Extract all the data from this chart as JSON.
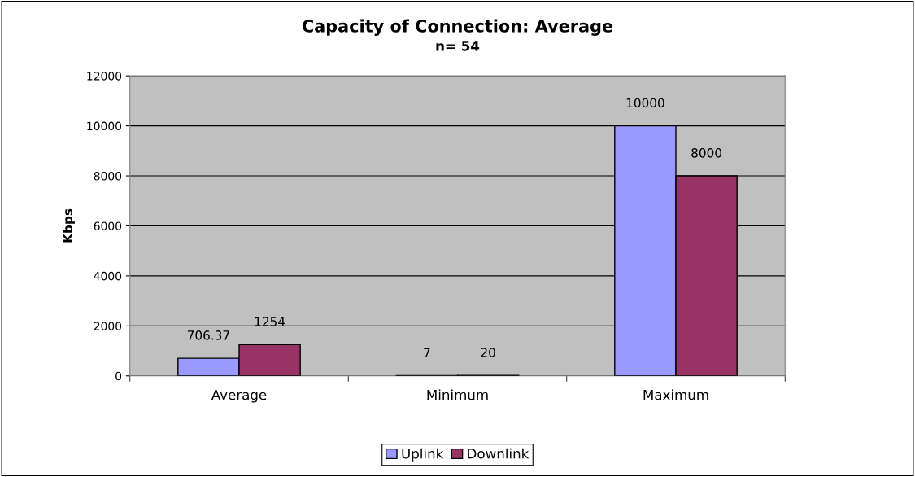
{
  "chart_data": {
    "type": "bar",
    "title": "Capacity of Connection: Average",
    "subtitle": "n= 54",
    "ylabel": "Kbps",
    "categories": [
      "Average",
      "Minimum",
      "Maximum"
    ],
    "series": [
      {
        "name": "Uplink",
        "color": "#9999ff",
        "values": [
          706.37,
          7,
          10000
        ]
      },
      {
        "name": "Downlink",
        "color": "#993366",
        "values": [
          1254,
          20,
          8000
        ]
      }
    ],
    "ylim": [
      0,
      12000
    ],
    "yticks": [
      0,
      2000,
      4000,
      6000,
      8000,
      10000,
      12000
    ],
    "grid": "y",
    "legend": "bottom",
    "data_labels": true
  }
}
